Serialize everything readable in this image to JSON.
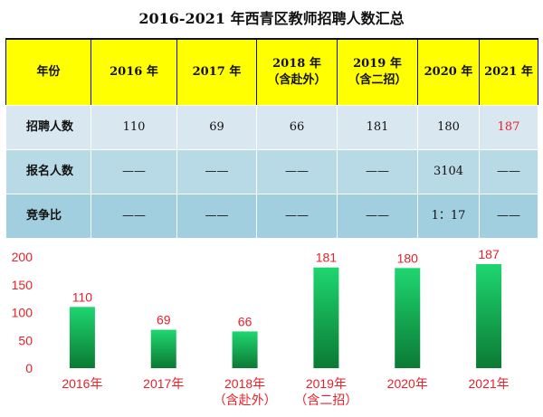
{
  "title": "2016-2021 年西青区教师招聘人数汇总",
  "table": {
    "headers": [
      [
        "年份"
      ],
      [
        "2016 年"
      ],
      [
        "2017 年"
      ],
      [
        "2018 年",
        "（含赴外）"
      ],
      [
        "2019 年",
        "（含二招）"
      ],
      [
        "2020 年"
      ],
      [
        "2021 年"
      ]
    ],
    "rows": [
      {
        "label": "招聘人数",
        "cells": [
          "110",
          "69",
          "66",
          "181",
          "180",
          "187"
        ]
      },
      {
        "label": "报名人数",
        "cells": [
          "——",
          "——",
          "——",
          "——",
          "3104",
          "——"
        ]
      },
      {
        "label": "竞争比",
        "cells": [
          "——",
          "——",
          "——",
          "——",
          "1：17",
          "——"
        ]
      }
    ],
    "highlight_color": "#e8202a"
  },
  "chart_data": {
    "type": "bar",
    "categories": [
      [
        "2016年"
      ],
      [
        "2017年"
      ],
      [
        "2018年",
        "（含赴外）"
      ],
      [
        "2019年",
        "（含二招）"
      ],
      [
        "2020年"
      ],
      [
        "2021年"
      ]
    ],
    "values": [
      110,
      69,
      66,
      181,
      180,
      187
    ],
    "ylim": [
      0,
      200
    ],
    "yticks": [
      0,
      50,
      100,
      150,
      200
    ],
    "grid": false,
    "bar_color_top": "#1ed670",
    "bar_color_bottom": "#0b7a33",
    "label_color": "#e8202a"
  }
}
